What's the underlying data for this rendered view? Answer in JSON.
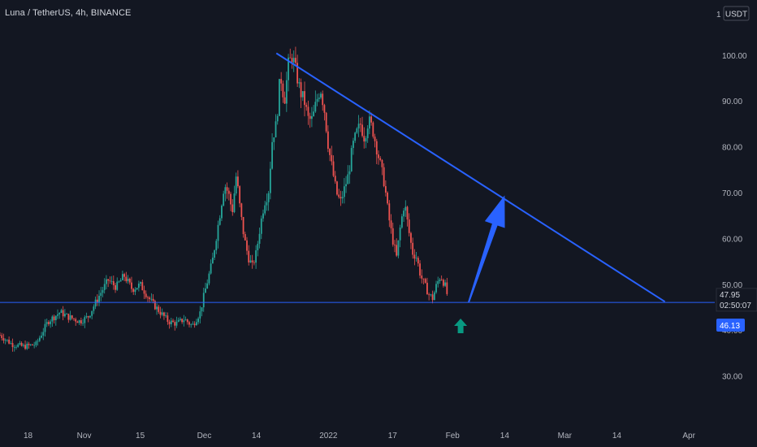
{
  "chart_data": {
    "type": "candlestick",
    "title": "Luna / TetherUS, 4h, BINANCE",
    "currency_label": "USDT",
    "price_axis_label_top": "1",
    "y_ticks": [
      "100.00",
      "90.00",
      "80.00",
      "70.00",
      "60.00",
      "50.00",
      "40.00",
      "30.00"
    ],
    "y_tick_values": [
      100,
      90,
      80,
      70,
      60,
      50,
      40,
      30
    ],
    "x_ticks": [
      {
        "label": "18",
        "date": "2021-10-18"
      },
      {
        "label": "Nov",
        "date": "2021-11-01"
      },
      {
        "label": "15",
        "date": "2021-11-15"
      },
      {
        "label": "Dec",
        "date": "2021-12-01"
      },
      {
        "label": "14",
        "date": "2021-12-14"
      },
      {
        "label": "2022",
        "date": "2022-01-01"
      },
      {
        "label": "17",
        "date": "2022-01-17"
      },
      {
        "label": "Feb",
        "date": "2022-02-01"
      },
      {
        "label": "14",
        "date": "2022-02-14"
      },
      {
        "label": "Mar",
        "date": "2022-03-01"
      },
      {
        "label": "14",
        "date": "2022-03-14"
      },
      {
        "label": "Apr",
        "date": "2022-04-01"
      }
    ],
    "ylim": [
      20,
      107
    ],
    "xlim": [
      "2021-10-11",
      "2022-04-18"
    ],
    "last_price": "47.95",
    "countdown": "02:50:07",
    "support_price_label": "46.13",
    "support_level": 46.13,
    "trendline": {
      "from": {
        "date": "2021-12-19",
        "price": 100.5
      },
      "to": {
        "date": "2022-03-26",
        "price": 46.3
      }
    },
    "projection_arrow": {
      "from": {
        "date": "2022-02-05",
        "price": 46.13
      },
      "to": {
        "date": "2022-02-14",
        "price": 69.5
      }
    },
    "marker_arrow_date": "2022-02-03",
    "price_path": [
      [
        "2021-10-11",
        39
      ],
      [
        "2021-10-14",
        37
      ],
      [
        "2021-10-17",
        36.5
      ],
      [
        "2021-10-20",
        37
      ],
      [
        "2021-10-23",
        42
      ],
      [
        "2021-10-26",
        44
      ],
      [
        "2021-10-28",
        43
      ],
      [
        "2021-10-31",
        42
      ],
      [
        "2021-11-02",
        43
      ],
      [
        "2021-11-05",
        48
      ],
      [
        "2021-11-07",
        51
      ],
      [
        "2021-11-09",
        49.5
      ],
      [
        "2021-11-11",
        52
      ],
      [
        "2021-11-13",
        49
      ],
      [
        "2021-11-15",
        50
      ],
      [
        "2021-11-18",
        46
      ],
      [
        "2021-11-20",
        44
      ],
      [
        "2021-11-22",
        42
      ],
      [
        "2021-11-24",
        41.5
      ],
      [
        "2021-11-26",
        42.5
      ],
      [
        "2021-11-28",
        41
      ],
      [
        "2021-11-30",
        44
      ],
      [
        "2021-12-01",
        48
      ],
      [
        "2021-12-03",
        55
      ],
      [
        "2021-12-05",
        66
      ],
      [
        "2021-12-06",
        72
      ],
      [
        "2021-12-07",
        70
      ],
      [
        "2021-12-08",
        66
      ],
      [
        "2021-12-09",
        74
      ],
      [
        "2021-12-10",
        66
      ],
      [
        "2021-12-11",
        60
      ],
      [
        "2021-12-12",
        56
      ],
      [
        "2021-12-13",
        54
      ],
      [
        "2021-12-14",
        57
      ],
      [
        "2021-12-15",
        63
      ],
      [
        "2021-12-16",
        68
      ],
      [
        "2021-12-17",
        70
      ],
      [
        "2021-12-18",
        82
      ],
      [
        "2021-12-19",
        85
      ],
      [
        "2021-12-20",
        96
      ],
      [
        "2021-12-21",
        90
      ],
      [
        "2021-12-22",
        98
      ],
      [
        "2021-12-23",
        100
      ],
      [
        "2021-12-24",
        96
      ],
      [
        "2021-12-25",
        92
      ],
      [
        "2021-12-26",
        90
      ],
      [
        "2021-12-27",
        86
      ],
      [
        "2021-12-28",
        86
      ],
      [
        "2021-12-29",
        90
      ],
      [
        "2021-12-30",
        93
      ],
      [
        "2021-12-31",
        88
      ],
      [
        "2022-01-01",
        80
      ],
      [
        "2022-01-02",
        75
      ],
      [
        "2022-01-03",
        70
      ],
      [
        "2022-01-04",
        68
      ],
      [
        "2022-01-05",
        71
      ],
      [
        "2022-01-06",
        74
      ],
      [
        "2022-01-07",
        80
      ],
      [
        "2022-01-08",
        83
      ],
      [
        "2022-01-09",
        85
      ],
      [
        "2022-01-10",
        82
      ],
      [
        "2022-01-11",
        86
      ],
      [
        "2022-01-12",
        84
      ],
      [
        "2022-01-13",
        80
      ],
      [
        "2022-01-14",
        76
      ],
      [
        "2022-01-15",
        72
      ],
      [
        "2022-01-16",
        65
      ],
      [
        "2022-01-17",
        60
      ],
      [
        "2022-01-18",
        56
      ],
      [
        "2022-01-19",
        63
      ],
      [
        "2022-01-20",
        68
      ],
      [
        "2022-01-21",
        62
      ],
      [
        "2022-01-22",
        57
      ],
      [
        "2022-01-23",
        56
      ],
      [
        "2022-01-24",
        52
      ],
      [
        "2022-01-25",
        50
      ],
      [
        "2022-01-26",
        48
      ],
      [
        "2022-01-27",
        47
      ],
      [
        "2022-01-28",
        50
      ],
      [
        "2022-01-29",
        52
      ],
      [
        "2022-01-30",
        50
      ],
      [
        "2022-01-31",
        47.95
      ]
    ],
    "colors": {
      "background": "#131722",
      "up": "#26a69a",
      "down": "#ef5350",
      "trendline": "#2962ff",
      "support_line": "#2962ff",
      "arrow_blue": "#2962ff",
      "arrow_teal": "#089981",
      "axis_text": "#b2b5be",
      "price_label_bg": "#2962ff"
    }
  }
}
